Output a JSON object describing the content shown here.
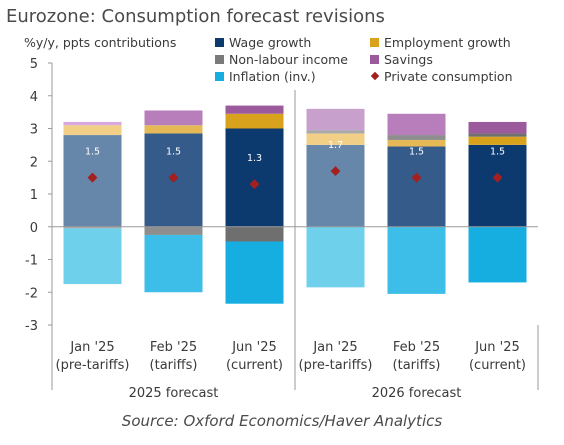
{
  "title": "Eurozone: Consumption forecast revisions",
  "source": "Source: Oxford Economics/Haver Analytics",
  "chart_data": {
    "type": "bar",
    "stacked": true,
    "ylabel": "%y/y, ppts contributions",
    "ylim": [
      -3,
      5
    ],
    "yticks": [
      -3,
      -2,
      -1,
      0,
      1,
      2,
      3,
      4,
      5
    ],
    "categories": [
      [
        "Jan '25",
        "(pre-tariffs)"
      ],
      [
        "Feb '25",
        "(tariffs)"
      ],
      [
        "Jun '25",
        "(current)"
      ],
      [
        "Jan '25",
        "(pre-tariffs)"
      ],
      [
        "Feb '25",
        "(tariffs)"
      ],
      [
        "Jun '25",
        "(current)"
      ]
    ],
    "groups": [
      {
        "label": "2025 forecast",
        "start": 0,
        "end": 2
      },
      {
        "label": "2026 forecast",
        "start": 3,
        "end": 5
      }
    ],
    "series": [
      {
        "name": "Wage growth",
        "color": "#0d3a6e",
        "values": [
          2.8,
          2.85,
          3.0,
          2.5,
          2.45,
          2.5
        ]
      },
      {
        "name": "Employment growth",
        "color": "#d9a21c",
        "values": [
          0.3,
          0.25,
          0.45,
          0.35,
          0.2,
          0.25
        ]
      },
      {
        "name": "Non-labour income",
        "color": "#7a7a7a",
        "values": [
          -0.05,
          -0.25,
          -0.45,
          0.1,
          0.15,
          0.1
        ]
      },
      {
        "name": "Savings",
        "color": "#9a5a9c",
        "values": [
          0.1,
          0.45,
          0.25,
          0.65,
          0.65,
          0.35
        ]
      },
      {
        "name": "Inflation (inv.)",
        "color": "#16aee0",
        "values": [
          -1.7,
          -1.75,
          -1.9,
          -1.85,
          -2.05,
          -1.7
        ]
      }
    ],
    "markers": {
      "name": "Private consumption",
      "color": "#a3201f",
      "values": [
        1.5,
        1.5,
        1.3,
        1.7,
        1.5,
        1.5
      ],
      "labels": [
        "1.5",
        "1.5",
        "1.3",
        "1.7",
        "1.5",
        "1.5"
      ]
    },
    "bar_color_scheme": {
      "Wage growth": [
        "#6787aa",
        "#345b8a",
        "#0d3a6e",
        "#6787aa",
        "#345b8a",
        "#0d3a6e"
      ],
      "Employment growth": [
        "#f2cf87",
        "#e5b955",
        "#d9a21c",
        "#f2cf87",
        "#e5b955",
        "#d9a21c"
      ],
      "Non-labour income": [
        "#a9a9a9",
        "#8e8e8e",
        "#6f6f6f",
        "#a9a9a9",
        "#8e8e8e",
        "#6f6f6f"
      ],
      "Savings": [
        "#d9a8dd",
        "#b87dbb",
        "#9a5a9c",
        "#c8a0cc",
        "#b87dbb",
        "#9a5a9c"
      ],
      "Inflation (inv.)": [
        "#6fd0ec",
        "#3cbee8",
        "#16aee0",
        "#6fd0ec",
        "#3cbee8",
        "#16aee0"
      ]
    },
    "legend": {
      "position": "top",
      "items": [
        {
          "label": "Wage growth",
          "color": "#0d3a6e",
          "shape": "square"
        },
        {
          "label": "Employment growth",
          "color": "#d9a21c",
          "shape": "square"
        },
        {
          "label": "Non-labour income",
          "color": "#7a7a7a",
          "shape": "square"
        },
        {
          "label": "Savings",
          "color": "#9a5a9c",
          "shape": "square"
        },
        {
          "label": "Inflation (inv.)",
          "color": "#16aee0",
          "shape": "square"
        },
        {
          "label": "Private consumption",
          "color": "#a3201f",
          "shape": "diamond"
        }
      ]
    },
    "grid": false
  }
}
